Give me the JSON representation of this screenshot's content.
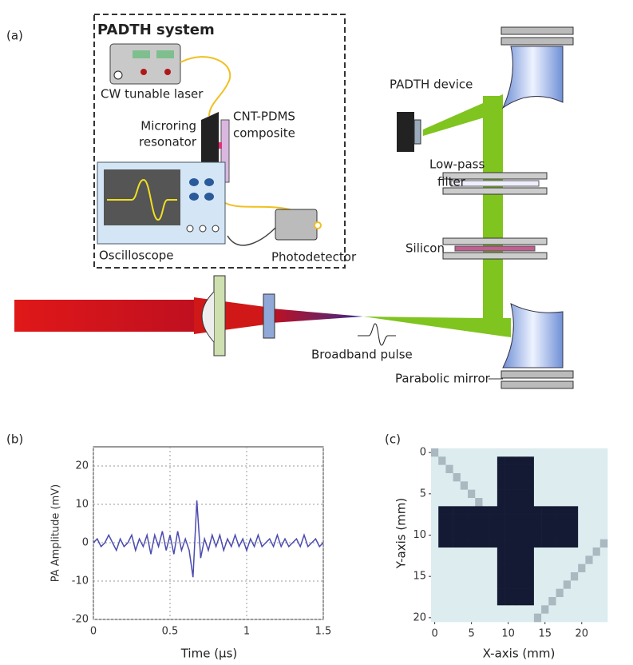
{
  "figure": {
    "panel_labels": [
      "(a)",
      "(b)",
      "(c)"
    ]
  },
  "diagram": {
    "system_title": "PADTH system",
    "laser": "CW tunable laser",
    "microring": [
      "Microring",
      "resonator"
    ],
    "cnt": [
      "CNT-PDMS",
      "composite"
    ],
    "oscilloscope": "Oscilloscope",
    "photodetector": "Photodetector",
    "device": "PADTH device",
    "filter": [
      "Low-pass",
      "filter"
    ],
    "silicon": "Silicon",
    "pulse": "Broadband pulse",
    "mirror": "Parabolic mirror"
  },
  "chart_data": [
    {
      "type": "line",
      "xlabel": "Time (μs)",
      "ylabel": "PA Amplitude (mV)",
      "x": [
        0,
        0.025,
        0.05,
        0.075,
        0.1,
        0.125,
        0.15,
        0.175,
        0.2,
        0.225,
        0.25,
        0.275,
        0.3,
        0.325,
        0.35,
        0.375,
        0.4,
        0.425,
        0.45,
        0.475,
        0.5,
        0.525,
        0.55,
        0.575,
        0.6,
        0.625,
        0.65,
        0.675,
        0.7,
        0.725,
        0.75,
        0.775,
        0.8,
        0.825,
        0.85,
        0.875,
        0.9,
        0.925,
        0.95,
        0.975,
        1,
        1.025,
        1.05,
        1.075,
        1.1,
        1.125,
        1.15,
        1.175,
        1.2,
        1.225,
        1.25,
        1.275,
        1.3,
        1.325,
        1.35,
        1.375,
        1.4,
        1.425,
        1.45,
        1.475,
        1.5
      ],
      "series": [
        {
          "color": "#4b4bb0",
          "values": [
            0,
            1,
            -1,
            0,
            2,
            0,
            -2,
            1,
            -1,
            0,
            2,
            -2,
            1,
            -1,
            2,
            -3,
            2,
            -1,
            3,
            -2,
            2,
            -3,
            3,
            -2,
            1,
            -2,
            -9,
            11,
            -4,
            1,
            -2,
            2,
            -1,
            2,
            -2,
            1,
            -1,
            2,
            -1,
            1,
            -2,
            1,
            -1,
            2,
            -1,
            0,
            1,
            -1,
            2,
            -1,
            1,
            -1,
            0,
            1,
            -1,
            2,
            -1,
            0,
            1,
            -1,
            0
          ]
        }
      ],
      "xlim": [
        0,
        1.5
      ],
      "ylim": [
        -20,
        25
      ],
      "xticks": [
        0,
        0.5,
        1,
        1.5
      ],
      "yticks": [
        -20,
        -10,
        0,
        10,
        20
      ],
      "grid": true
    },
    {
      "type": "heatmap",
      "xlabel": "X-axis (mm)",
      "ylabel": "Y-axis (mm)",
      "x": [
        0,
        1,
        2,
        3,
        4,
        5,
        6,
        7,
        8,
        9,
        10,
        11,
        12,
        13,
        14,
        15,
        16,
        17,
        18,
        19,
        20,
        21,
        22,
        23
      ],
      "y": [
        0,
        1,
        2,
        3,
        4,
        5,
        6,
        7,
        8,
        9,
        10,
        11,
        12,
        13,
        14,
        15,
        16,
        17,
        18,
        19,
        20
      ],
      "colors": [
        "#dcecef",
        "#141a33"
      ],
      "z": [
        [
          3,
          1,
          1,
          1,
          1,
          1,
          1,
          1,
          1,
          1,
          1,
          1,
          1,
          1,
          1,
          1,
          1,
          1,
          1,
          1,
          1,
          1,
          1,
          1
        ],
        [
          1,
          3,
          1,
          1,
          1,
          1,
          1,
          1,
          1,
          9,
          9,
          9,
          9,
          9,
          1,
          1,
          1,
          1,
          1,
          1,
          1,
          1,
          1,
          1
        ],
        [
          1,
          1,
          3,
          1,
          1,
          1,
          1,
          1,
          1,
          9,
          9,
          9,
          9,
          9,
          1,
          1,
          1,
          1,
          1,
          1,
          1,
          1,
          1,
          1
        ],
        [
          1,
          1,
          1,
          3,
          1,
          1,
          1,
          1,
          1,
          9,
          9,
          9,
          9,
          9,
          1,
          1,
          1,
          1,
          1,
          1,
          1,
          1,
          1,
          1
        ],
        [
          1,
          1,
          1,
          1,
          3,
          1,
          1,
          1,
          1,
          9,
          9,
          9,
          9,
          9,
          1,
          1,
          1,
          1,
          1,
          1,
          1,
          1,
          1,
          1
        ],
        [
          1,
          1,
          1,
          1,
          1,
          3,
          1,
          1,
          1,
          9,
          9,
          9,
          9,
          9,
          1,
          1,
          1,
          1,
          1,
          1,
          1,
          1,
          1,
          1
        ],
        [
          1,
          1,
          1,
          1,
          1,
          1,
          3,
          1,
          1,
          9,
          9,
          9,
          9,
          9,
          1,
          1,
          1,
          1,
          1,
          1,
          1,
          1,
          1,
          1
        ],
        [
          1,
          9,
          9,
          9,
          9,
          9,
          9,
          9,
          9,
          9,
          9,
          9,
          9,
          9,
          9,
          9,
          9,
          9,
          9,
          9,
          1,
          1,
          1,
          1
        ],
        [
          1,
          9,
          9,
          9,
          9,
          9,
          9,
          9,
          9,
          9,
          9,
          9,
          9,
          9,
          9,
          9,
          9,
          9,
          9,
          9,
          1,
          1,
          1,
          1
        ],
        [
          1,
          9,
          9,
          9,
          9,
          9,
          9,
          9,
          9,
          9,
          9,
          9,
          9,
          9,
          9,
          9,
          9,
          9,
          9,
          9,
          1,
          1,
          1,
          1
        ],
        [
          1,
          9,
          9,
          9,
          9,
          9,
          9,
          9,
          9,
          9,
          9,
          9,
          9,
          9,
          9,
          9,
          9,
          9,
          9,
          9,
          1,
          1,
          1,
          1
        ],
        [
          1,
          9,
          9,
          9,
          9,
          9,
          9,
          9,
          9,
          9,
          9,
          9,
          9,
          9,
          9,
          9,
          9,
          9,
          9,
          9,
          1,
          1,
          1,
          3
        ],
        [
          1,
          1,
          1,
          1,
          1,
          1,
          1,
          1,
          1,
          9,
          9,
          9,
          9,
          9,
          1,
          1,
          1,
          1,
          1,
          1,
          1,
          1,
          3,
          1
        ],
        [
          1,
          1,
          1,
          1,
          1,
          1,
          1,
          1,
          1,
          9,
          9,
          9,
          9,
          9,
          1,
          1,
          1,
          1,
          1,
          1,
          1,
          3,
          1,
          1
        ],
        [
          1,
          1,
          1,
          1,
          1,
          1,
          1,
          1,
          1,
          9,
          9,
          9,
          9,
          9,
          1,
          1,
          1,
          1,
          1,
          1,
          3,
          1,
          1,
          1
        ],
        [
          1,
          1,
          1,
          1,
          1,
          1,
          1,
          1,
          1,
          9,
          9,
          9,
          9,
          9,
          1,
          1,
          1,
          1,
          1,
          3,
          1,
          1,
          1,
          1
        ],
        [
          1,
          1,
          1,
          1,
          1,
          1,
          1,
          1,
          1,
          9,
          9,
          9,
          9,
          9,
          1,
          1,
          1,
          1,
          3,
          1,
          1,
          1,
          1,
          1
        ],
        [
          1,
          1,
          1,
          1,
          1,
          1,
          1,
          1,
          1,
          9,
          9,
          9,
          9,
          9,
          1,
          1,
          1,
          3,
          1,
          1,
          1,
          1,
          1,
          1
        ],
        [
          1,
          1,
          1,
          1,
          1,
          1,
          1,
          1,
          1,
          9,
          9,
          9,
          9,
          9,
          1,
          1,
          3,
          1,
          1,
          1,
          1,
          1,
          1,
          1
        ],
        [
          1,
          1,
          1,
          1,
          1,
          1,
          1,
          1,
          1,
          1,
          1,
          1,
          1,
          1,
          1,
          3,
          1,
          1,
          1,
          1,
          1,
          1,
          1,
          1
        ],
        [
          1,
          1,
          1,
          1,
          1,
          1,
          1,
          1,
          1,
          1,
          1,
          1,
          1,
          1,
          3,
          1,
          1,
          1,
          1,
          1,
          1,
          1,
          1,
          1
        ]
      ],
      "xlim": [
        -0.5,
        23.5
      ],
      "ylim": [
        20.5,
        -0.5
      ],
      "xticks": [
        0,
        5,
        10,
        15,
        20
      ],
      "yticks": [
        0,
        5,
        10,
        15,
        20
      ]
    }
  ]
}
